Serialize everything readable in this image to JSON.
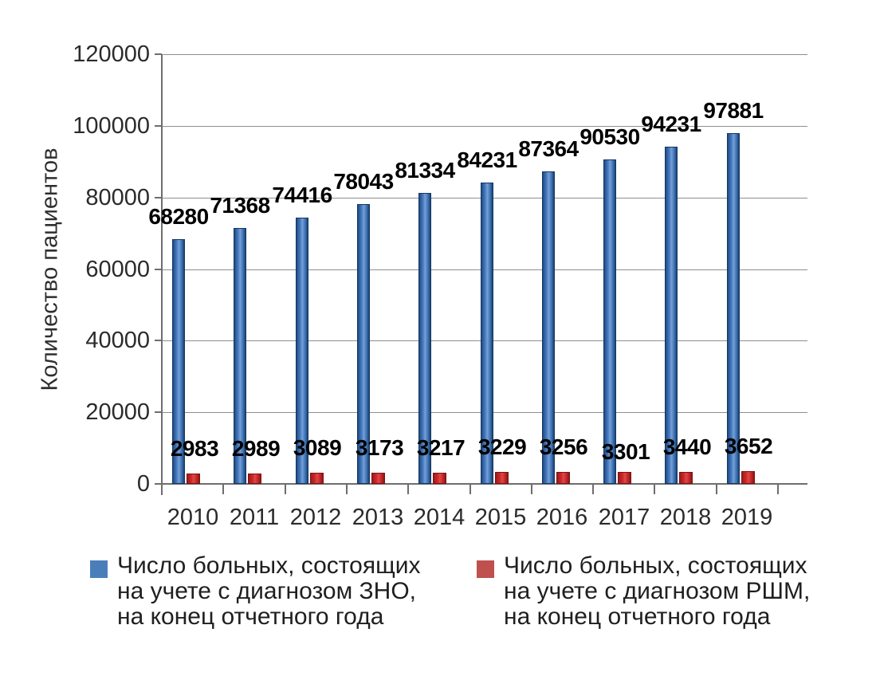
{
  "chart_data": {
    "type": "bar",
    "title": "",
    "categories": [
      "2010",
      "2011",
      "2012",
      "2013",
      "2014",
      "2015",
      "2016",
      "2017",
      "2018",
      "2019"
    ],
    "series": [
      {
        "name": "Число больных, состоящих на учете с диагнозом ЗНО, на конец отчетного года",
        "color": "#4a7ebb",
        "border_color": "#16375f",
        "gradient": [
          "#1d4a87",
          "#4a7dc0",
          "#74a0d8",
          "#3c6fae",
          "#1a4175"
        ],
        "values": [
          68280,
          71368,
          74416,
          78043,
          81334,
          84231,
          87364,
          90530,
          94231,
          97881
        ],
        "label_dy": [
          0,
          0,
          0,
          0,
          0,
          0,
          0,
          0,
          0,
          0
        ]
      },
      {
        "name": "Число больных, состоящих на учете с диагнозом РШМ, на конец отчетного года",
        "color": "#c0504d",
        "border_color": "#7a1313",
        "gradient": [
          "#9e1b1b",
          "#cf2a2a",
          "#e04848",
          "#c02424",
          "#8c1616"
        ],
        "values": [
          2983,
          2989,
          3089,
          3173,
          3217,
          3229,
          3256,
          3301,
          3440,
          3652
        ],
        "label_dy": [
          0,
          0,
          0,
          0,
          0,
          0,
          0,
          6,
          0,
          0
        ]
      }
    ],
    "xlabel": "",
    "ylabel": "Количество пациентов",
    "ylim": [
      0,
      120000
    ],
    "ytick_step": 20000,
    "yticks": [
      "0",
      "20000",
      "40000",
      "60000",
      "80000",
      "100000",
      "120000"
    ],
    "grid": true,
    "legend_position": "bottom",
    "show_data_labels": true
  },
  "legend": {
    "items": [
      {
        "label": "Число больных, состоящих\nна учете с диагнозом ЗНО,\nна конец отчетного года",
        "color": "#4a7ebb"
      },
      {
        "label": "Число больных, состоящих\nна учете с диагнозом РШМ,\nна конец отчетного года",
        "color": "#c0504d"
      }
    ]
  },
  "colors": {
    "grid": "#8f8f8f",
    "axis": "#6e6e6e",
    "tick_text": "#2b2b2b",
    "data_label": "#000000",
    "background": "#ffffff"
  }
}
